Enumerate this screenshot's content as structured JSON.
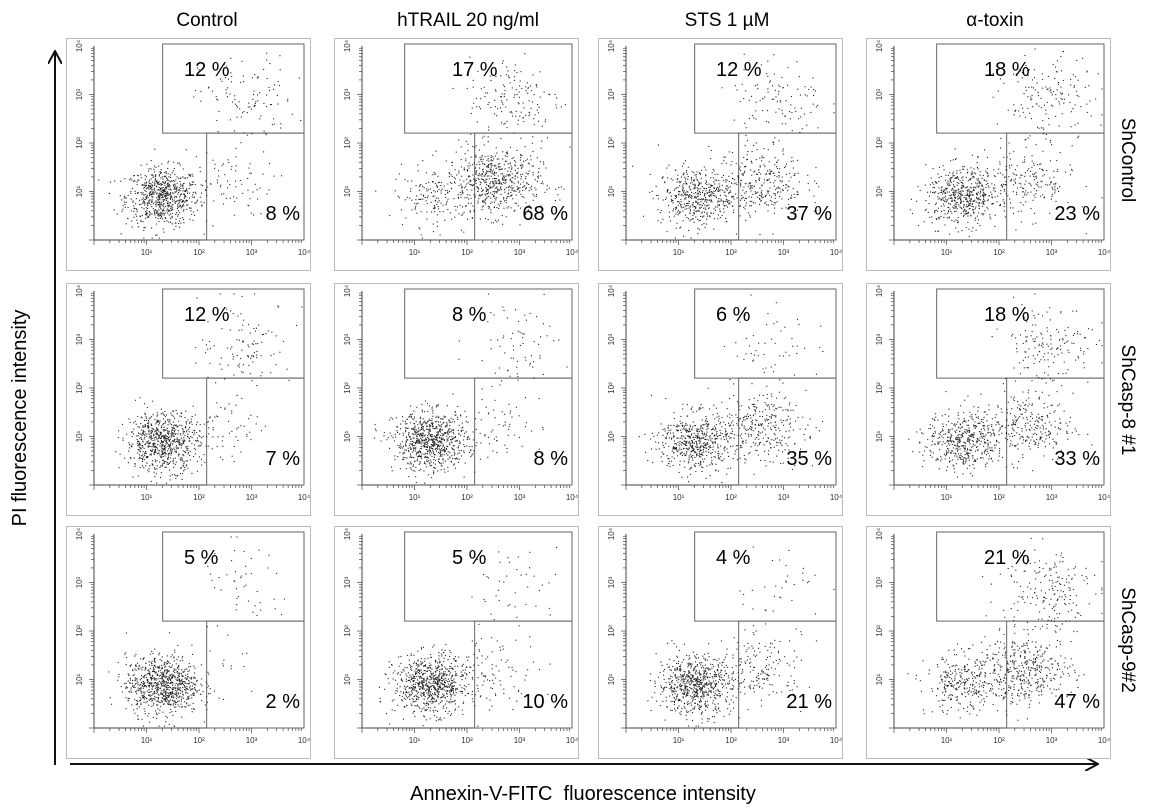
{
  "chart_data": {
    "type": "scatter",
    "title": "",
    "columns": [
      "Control",
      "hTRAIL 20 ng/ml",
      "STS 1 µM",
      "α-toxin"
    ],
    "rows": [
      "ShControl",
      "ShCasp-8 #1",
      "ShCasp-9#2"
    ],
    "xlabel": "Annexin-V-FITC  fluorescence intensity",
    "ylabel": "PI fluorescence intensity",
    "xscale": "log",
    "yscale": "log",
    "xlim": [
      1,
      10000
    ],
    "ylim": [
      1,
      10000
    ],
    "xticks": [
      "10¹",
      "10²",
      "10³",
      "10⁴"
    ],
    "yticks": [
      "10¹",
      "10²",
      "10³",
      "10⁴"
    ],
    "gate_x": 140,
    "gate_y": 160,
    "panels": [
      {
        "row": "ShControl",
        "column": "Control",
        "upper_gate_pct": "12 %",
        "lower_gate_pct": "8 %"
      },
      {
        "row": "ShControl",
        "column": "hTRAIL 20 ng/ml",
        "upper_gate_pct": "17 %",
        "lower_gate_pct": "68 %"
      },
      {
        "row": "ShControl",
        "column": "STS 1 µM",
        "upper_gate_pct": "12 %",
        "lower_gate_pct": "37 %"
      },
      {
        "row": "ShControl",
        "column": "α-toxin",
        "upper_gate_pct": "18 %",
        "lower_gate_pct": "23 %"
      },
      {
        "row": "ShCasp-8 #1",
        "column": "Control",
        "upper_gate_pct": "12 %",
        "lower_gate_pct": "7 %"
      },
      {
        "row": "ShCasp-8 #1",
        "column": "hTRAIL 20 ng/ml",
        "upper_gate_pct": "8 %",
        "lower_gate_pct": "8 %"
      },
      {
        "row": "ShCasp-8 #1",
        "column": "STS 1 µM",
        "upper_gate_pct": "6 %",
        "lower_gate_pct": "35 %"
      },
      {
        "row": "ShCasp-8 #1",
        "column": "α-toxin",
        "upper_gate_pct": "18 %",
        "lower_gate_pct": "33 %"
      },
      {
        "row": "ShCasp-9#2",
        "column": "Control",
        "upper_gate_pct": "5 %",
        "lower_gate_pct": "2 %"
      },
      {
        "row": "ShCasp-9#2",
        "column": "hTRAIL 20 ng/ml",
        "upper_gate_pct": "5 %",
        "lower_gate_pct": "10 %"
      },
      {
        "row": "ShCasp-9#2",
        "column": "STS 1 µM",
        "upper_gate_pct": "4 %",
        "lower_gate_pct": "21 %"
      },
      {
        "row": "ShCasp-9#2",
        "column": "α-toxin",
        "upper_gate_pct": "21 %",
        "lower_gate_pct": "47 %"
      }
    ]
  }
}
